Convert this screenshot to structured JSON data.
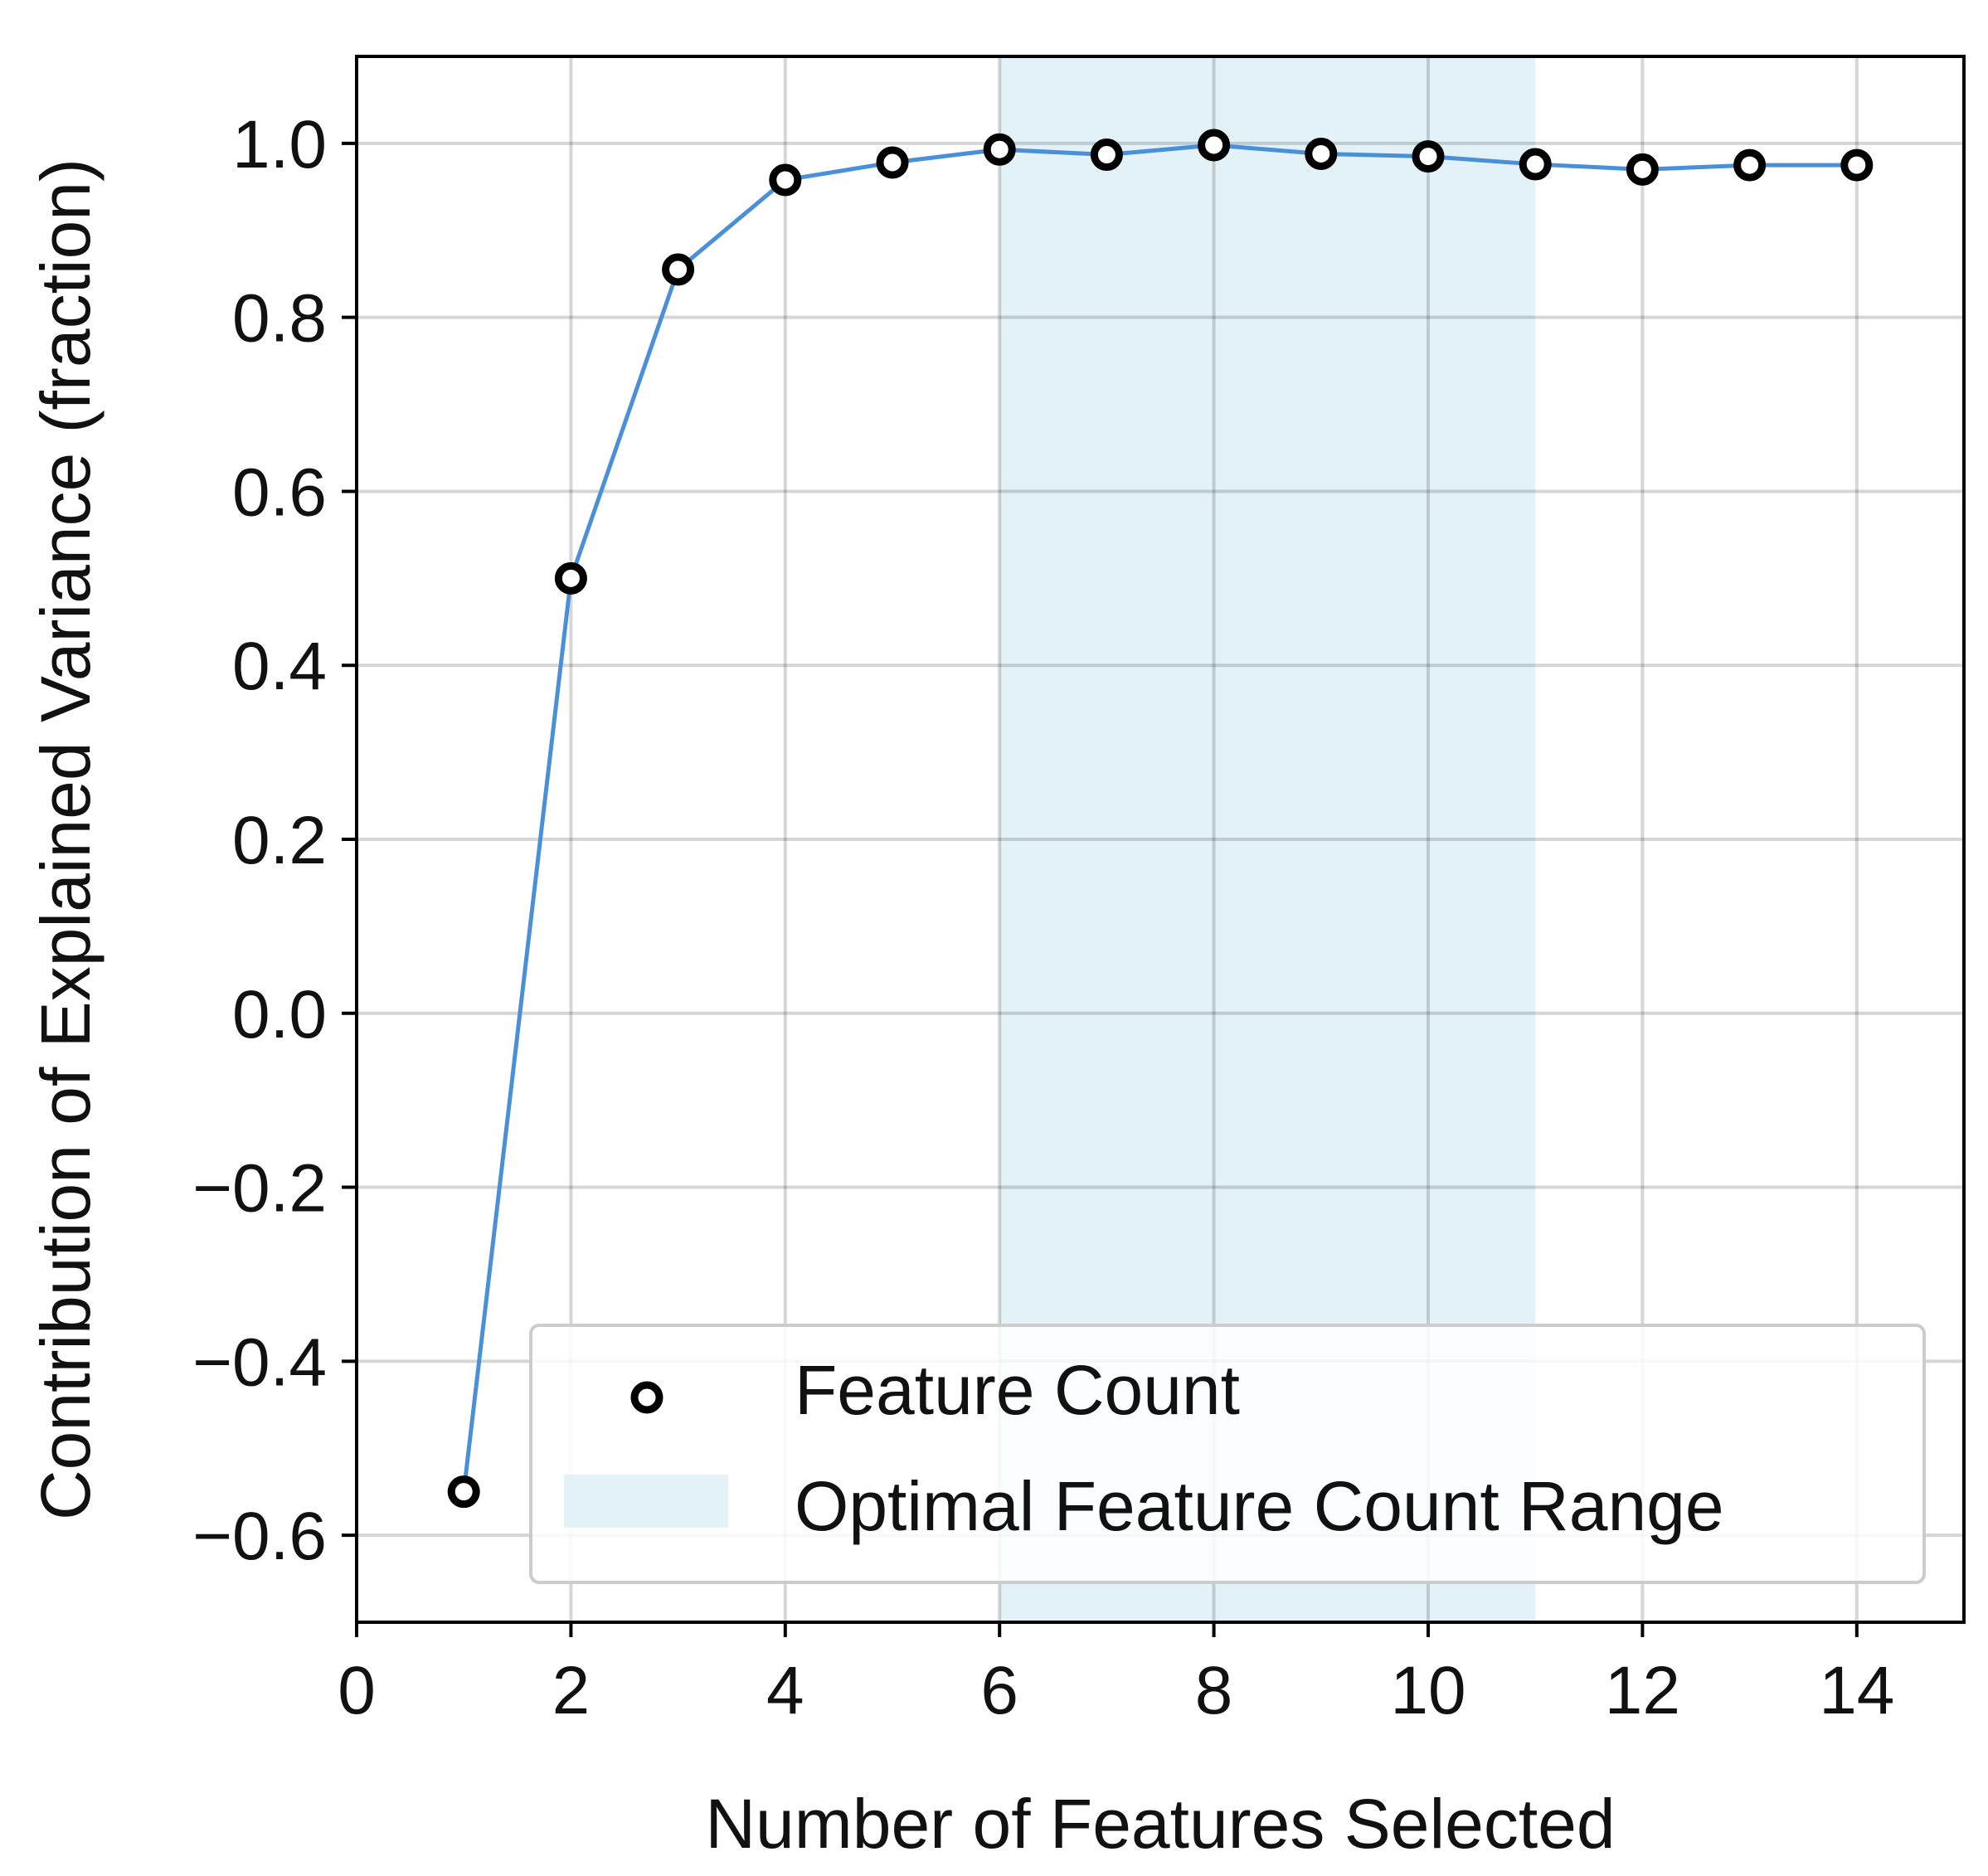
{
  "chart_data": {
    "type": "line",
    "xlabel": "Number of Features Selected",
    "ylabel": "Contribution of Explained Variance (fraction)",
    "xlim": [
      0,
      15
    ],
    "ylim": [
      -0.7,
      1.1
    ],
    "xticks": [
      0,
      2,
      4,
      6,
      8,
      10,
      12,
      14
    ],
    "yticks": [
      -0.6,
      -0.4,
      -0.2,
      0.0,
      0.2,
      0.4,
      0.6,
      0.8,
      1.0
    ],
    "ytick_labels": [
      "−0.6",
      "−0.4",
      "−0.2",
      "0.0",
      "0.2",
      "0.4",
      "0.6",
      "0.8",
      "1.0"
    ],
    "grid": true,
    "legend_position": "lower-right",
    "line_color": "#4a90d9",
    "band_color": "#e3f2f7",
    "series": [
      {
        "name": "Feature Count",
        "x": [
          1,
          2,
          3,
          4,
          5,
          6,
          7,
          8,
          9,
          10,
          11,
          12,
          13,
          14
        ],
        "y": [
          -0.55,
          0.5,
          0.855,
          0.958,
          0.978,
          0.993,
          0.987,
          0.998,
          0.988,
          0.985,
          0.976,
          0.97,
          0.975,
          0.975
        ]
      }
    ],
    "shaded_range": {
      "name": "Optimal Feature Count Range",
      "x_start": 6,
      "x_end": 11
    }
  }
}
